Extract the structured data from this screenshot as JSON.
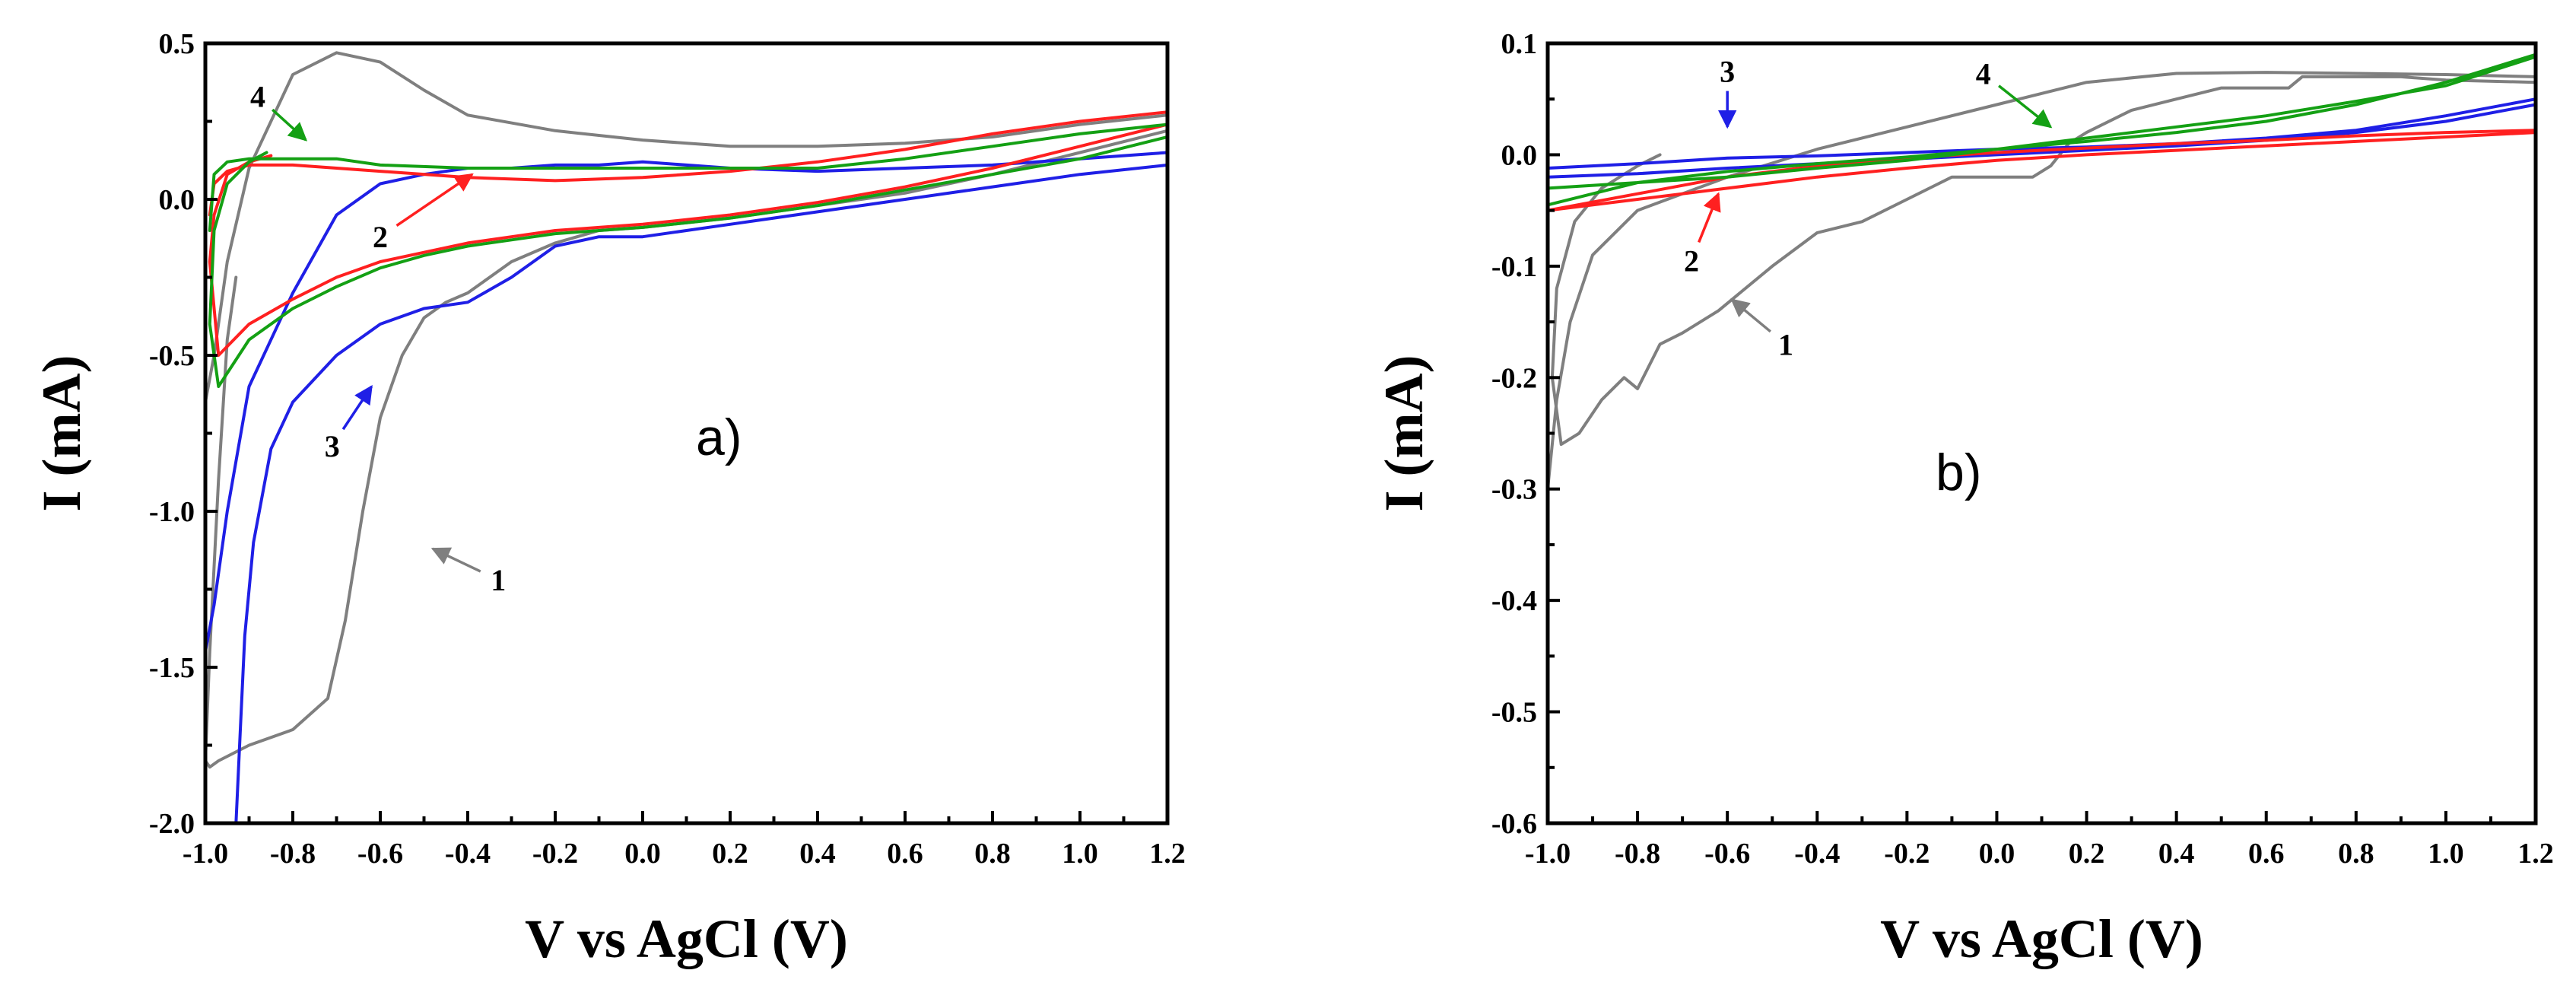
{
  "chart_data": [
    {
      "type": "line",
      "panel_label": "a)",
      "xlabel": "V vs AgCl (V)",
      "ylabel": "I (mA)",
      "xlim": [
        -1.0,
        1.2
      ],
      "ylim": [
        -2.0,
        0.5
      ],
      "x_ticks": [
        -1.0,
        -0.8,
        -0.6,
        -0.4,
        -0.2,
        0.0,
        0.2,
        0.4,
        0.6,
        0.8,
        1.0,
        1.2
      ],
      "x_tick_labels": [
        "-1.0",
        "-0.8",
        "-0.6",
        "-0.4",
        "-0.2",
        "0.0",
        "0.2",
        "0.4",
        "0.6",
        "0.8",
        "1.0",
        "1.2"
      ],
      "y_ticks": [
        0.5,
        0.0,
        -0.5,
        -1.0,
        -1.5,
        -2.0
      ],
      "y_tick_labels": [
        "0.5",
        "0.0",
        "-0.5",
        "-1.0",
        "-1.5",
        "-2.0"
      ],
      "series": [
        {
          "name": "1",
          "color": "#7f7f7f",
          "label_at": [
            -0.33,
            -1.22
          ],
          "arrow_to": [
            -0.48,
            -1.12
          ],
          "x": [
            -0.93,
            -0.95,
            -0.97,
            -0.99,
            -1.0,
            -0.99,
            -0.97,
            -0.9,
            -0.8,
            -0.72,
            -0.68,
            -0.64,
            -0.6,
            -0.55,
            -0.5,
            -0.45,
            -0.4,
            -0.35,
            -0.3,
            -0.2,
            -0.1,
            0.0,
            0.2,
            0.4,
            0.6,
            0.8,
            1.0,
            1.2,
            1.2,
            1.0,
            0.8,
            0.6,
            0.4,
            0.2,
            0.0,
            -0.2,
            -0.4,
            -0.5,
            -0.6,
            -0.7,
            -0.8,
            -0.9,
            -0.95,
            -0.98,
            -1.0
          ],
          "y": [
            -0.25,
            -0.45,
            -0.9,
            -1.45,
            -1.8,
            -1.82,
            -1.8,
            -1.75,
            -1.7,
            -1.6,
            -1.35,
            -1.0,
            -0.7,
            -0.5,
            -0.38,
            -0.33,
            -0.3,
            -0.25,
            -0.2,
            -0.14,
            -0.1,
            -0.09,
            -0.06,
            -0.02,
            0.02,
            0.08,
            0.15,
            0.22,
            0.27,
            0.24,
            0.2,
            0.18,
            0.17,
            0.17,
            0.19,
            0.22,
            0.27,
            0.35,
            0.44,
            0.47,
            0.4,
            0.1,
            -0.2,
            -0.5,
            -0.65
          ]
        },
        {
          "name": "3",
          "color": "#1f1fe6",
          "label_at": [
            -0.71,
            -0.79
          ],
          "arrow_to": [
            -0.62,
            -0.6
          ],
          "x": [
            -0.93,
            -0.92,
            -0.91,
            -0.89,
            -0.85,
            -0.8,
            -0.7,
            -0.6,
            -0.5,
            -0.4,
            -0.3,
            -0.2,
            -0.1,
            0.0,
            0.2,
            0.4,
            0.6,
            0.8,
            1.0,
            1.2,
            1.2,
            1.0,
            0.8,
            0.6,
            0.4,
            0.2,
            0.0,
            -0.1,
            -0.2,
            -0.3,
            -0.4,
            -0.5,
            -0.6,
            -0.7,
            -0.8,
            -0.9,
            -0.95,
            -0.98,
            -1.0
          ],
          "y": [
            -2.0,
            -1.7,
            -1.4,
            -1.1,
            -0.8,
            -0.65,
            -0.5,
            -0.4,
            -0.35,
            -0.33,
            -0.25,
            -0.15,
            -0.12,
            -0.12,
            -0.08,
            -0.04,
            0.0,
            0.04,
            0.08,
            0.11,
            0.15,
            0.13,
            0.11,
            0.1,
            0.09,
            0.1,
            0.12,
            0.11,
            0.11,
            0.1,
            0.1,
            0.08,
            0.05,
            -0.05,
            -0.3,
            -0.6,
            -1.0,
            -1.3,
            -1.45
          ]
        },
        {
          "name": "2",
          "color": "#ff2020",
          "label_at": [
            -0.6,
            -0.12
          ],
          "arrow_to": [
            -0.39,
            0.08
          ],
          "x": [
            -0.85,
            -0.9,
            -0.95,
            -0.98,
            -0.99,
            -0.97,
            -0.9,
            -0.8,
            -0.7,
            -0.6,
            -0.5,
            -0.4,
            -0.3,
            -0.2,
            -0.1,
            0.0,
            0.2,
            0.4,
            0.6,
            0.8,
            1.0,
            1.2,
            1.2,
            1.0,
            0.8,
            0.6,
            0.4,
            0.2,
            0.0,
            -0.2,
            -0.4,
            -0.6,
            -0.8,
            -0.9,
            -0.95,
            -0.98,
            -0.99
          ],
          "y": [
            0.14,
            0.12,
            0.08,
            -0.05,
            -0.2,
            -0.5,
            -0.4,
            -0.32,
            -0.25,
            -0.2,
            -0.17,
            -0.14,
            -0.12,
            -0.1,
            -0.09,
            -0.08,
            -0.05,
            -0.01,
            0.04,
            0.1,
            0.17,
            0.24,
            0.28,
            0.25,
            0.21,
            0.16,
            0.12,
            0.09,
            0.07,
            0.06,
            0.07,
            0.09,
            0.11,
            0.11,
            0.09,
            0.05,
            -0.05
          ]
        },
        {
          "name": "4",
          "color": "#14a014",
          "label_at": [
            -0.88,
            0.33
          ],
          "arrow_to": [
            -0.77,
            0.19
          ],
          "x": [
            -0.86,
            -0.9,
            -0.95,
            -0.98,
            -0.99,
            -0.97,
            -0.9,
            -0.8,
            -0.7,
            -0.6,
            -0.5,
            -0.4,
            -0.3,
            -0.2,
            -0.1,
            0.0,
            0.2,
            0.4,
            0.6,
            0.8,
            1.0,
            1.2,
            1.2,
            1.0,
            0.8,
            0.6,
            0.4,
            0.2,
            0.0,
            -0.2,
            -0.4,
            -0.6,
            -0.7,
            -0.8,
            -0.9,
            -0.95,
            -0.98,
            -0.99
          ],
          "y": [
            0.15,
            0.12,
            0.05,
            -0.1,
            -0.4,
            -0.6,
            -0.45,
            -0.35,
            -0.28,
            -0.22,
            -0.18,
            -0.15,
            -0.13,
            -0.11,
            -0.1,
            -0.09,
            -0.06,
            -0.02,
            0.03,
            0.08,
            0.13,
            0.2,
            0.24,
            0.21,
            0.17,
            0.13,
            0.1,
            0.1,
            0.1,
            0.1,
            0.1,
            0.11,
            0.13,
            0.13,
            0.13,
            0.12,
            0.08,
            -0.1
          ]
        }
      ]
    },
    {
      "type": "line",
      "panel_label": "b)",
      "xlabel": "V vs AgCl (V)",
      "ylabel": "I (mA)",
      "xlim": [
        -1.0,
        1.2
      ],
      "ylim": [
        -0.6,
        0.1
      ],
      "x_ticks": [
        -1.0,
        -0.8,
        -0.6,
        -0.4,
        -0.2,
        0.0,
        0.2,
        0.4,
        0.6,
        0.8,
        1.0,
        1.2
      ],
      "x_tick_labels": [
        "-1.0",
        "-0.8",
        "-0.6",
        "-0.4",
        "-0.2",
        "0.0",
        "0.2",
        "0.4",
        "0.6",
        "0.8",
        "1.0",
        "1.2"
      ],
      "y_ticks": [
        0.1,
        0.0,
        -0.1,
        -0.2,
        -0.3,
        -0.4,
        -0.5,
        -0.6
      ],
      "y_tick_labels": [
        "0.1",
        "0.0",
        "-0.1",
        "-0.2",
        "-0.3",
        "-0.4",
        "-0.5",
        "-0.6"
      ],
      "series": [
        {
          "name": "1",
          "color": "#7f7f7f",
          "label_at": [
            -0.47,
            -0.17
          ],
          "arrow_to": [
            -0.59,
            -0.13
          ],
          "x": [
            -0.75,
            -0.8,
            -0.88,
            -0.94,
            -0.98,
            -0.99,
            -0.97,
            -0.93,
            -0.88,
            -0.83,
            -0.8,
            -0.75,
            -0.7,
            -0.62,
            -0.5,
            -0.4,
            -0.3,
            -0.2,
            -0.1,
            0.0,
            0.08,
            0.12,
            0.16,
            0.2,
            0.3,
            0.4,
            0.5,
            0.6,
            0.65,
            0.68,
            0.7,
            0.8,
            0.9,
            1.0,
            1.2,
            1.2,
            1.0,
            0.8,
            0.6,
            0.4,
            0.2,
            0.0,
            -0.2,
            -0.4,
            -0.6,
            -0.8,
            -0.9,
            -0.95,
            -0.98,
            -1.0
          ],
          "y": [
            0.0,
            -0.01,
            -0.03,
            -0.06,
            -0.12,
            -0.2,
            -0.26,
            -0.25,
            -0.22,
            -0.2,
            -0.21,
            -0.17,
            -0.16,
            -0.14,
            -0.1,
            -0.07,
            -0.06,
            -0.04,
            -0.02,
            -0.02,
            -0.02,
            -0.01,
            0.01,
            0.02,
            0.04,
            0.05,
            0.06,
            0.06,
            0.06,
            0.07,
            0.07,
            0.07,
            0.07,
            0.067,
            0.065,
            0.07,
            0.072,
            0.073,
            0.074,
            0.073,
            0.065,
            0.045,
            0.025,
            0.005,
            -0.02,
            -0.05,
            -0.09,
            -0.15,
            -0.22,
            -0.3
          ]
        },
        {
          "name": "3",
          "color": "#1f1fe6",
          "label_at": [
            -0.6,
            0.075
          ],
          "arrow_to": [
            -0.6,
            0.025
          ],
          "x": [
            -1.0,
            -0.8,
            -0.6,
            -0.4,
            -0.2,
            0.0,
            0.2,
            0.4,
            0.6,
            0.8,
            1.0,
            1.2,
            1.2,
            1.0,
            0.8,
            0.6,
            0.4,
            0.2,
            0.0,
            -0.2,
            -0.4,
            -0.6,
            -0.8,
            -1.0
          ],
          "y": [
            -0.02,
            -0.017,
            -0.012,
            -0.008,
            -0.004,
            0.0,
            0.004,
            0.008,
            0.013,
            0.02,
            0.03,
            0.045,
            0.05,
            0.035,
            0.022,
            0.015,
            0.01,
            0.007,
            0.005,
            0.002,
            -0.001,
            -0.003,
            -0.008,
            -0.012
          ]
        },
        {
          "name": "2",
          "color": "#ff2020",
          "label_at": [
            -0.68,
            -0.095
          ],
          "arrow_to": [
            -0.62,
            -0.035
          ],
          "x": [
            -1.0,
            -0.8,
            -0.6,
            -0.4,
            -0.2,
            0.0,
            0.2,
            0.4,
            0.6,
            0.8,
            1.0,
            1.2,
            1.2,
            1.0,
            0.8,
            0.6,
            0.4,
            0.2,
            0.0,
            -0.2,
            -0.4,
            -0.6,
            -0.8,
            -1.0
          ],
          "y": [
            -0.05,
            -0.04,
            -0.03,
            -0.02,
            -0.012,
            -0.005,
            0.0,
            0.004,
            0.008,
            0.012,
            0.016,
            0.02,
            0.022,
            0.02,
            0.017,
            0.013,
            0.01,
            0.006,
            0.002,
            -0.003,
            -0.01,
            -0.02,
            -0.035,
            -0.05
          ]
        },
        {
          "name": "4",
          "color": "#14a014",
          "label_at": [
            -0.03,
            0.073
          ],
          "arrow_to": [
            0.12,
            0.025
          ],
          "x": [
            -1.0,
            -0.8,
            -0.6,
            -0.4,
            -0.2,
            0.0,
            0.2,
            0.4,
            0.6,
            0.8,
            1.0,
            1.2,
            1.2,
            1.0,
            0.8,
            0.6,
            0.4,
            0.2,
            0.0,
            -0.2,
            -0.4,
            -0.6,
            -0.8,
            -1.0
          ],
          "y": [
            -0.03,
            -0.025,
            -0.02,
            -0.012,
            -0.005,
            0.005,
            0.015,
            0.025,
            0.035,
            0.048,
            0.062,
            0.088,
            0.09,
            0.065,
            0.045,
            0.03,
            0.02,
            0.012,
            0.005,
            -0.002,
            -0.008,
            -0.015,
            -0.025,
            -0.045
          ]
        }
      ]
    }
  ]
}
